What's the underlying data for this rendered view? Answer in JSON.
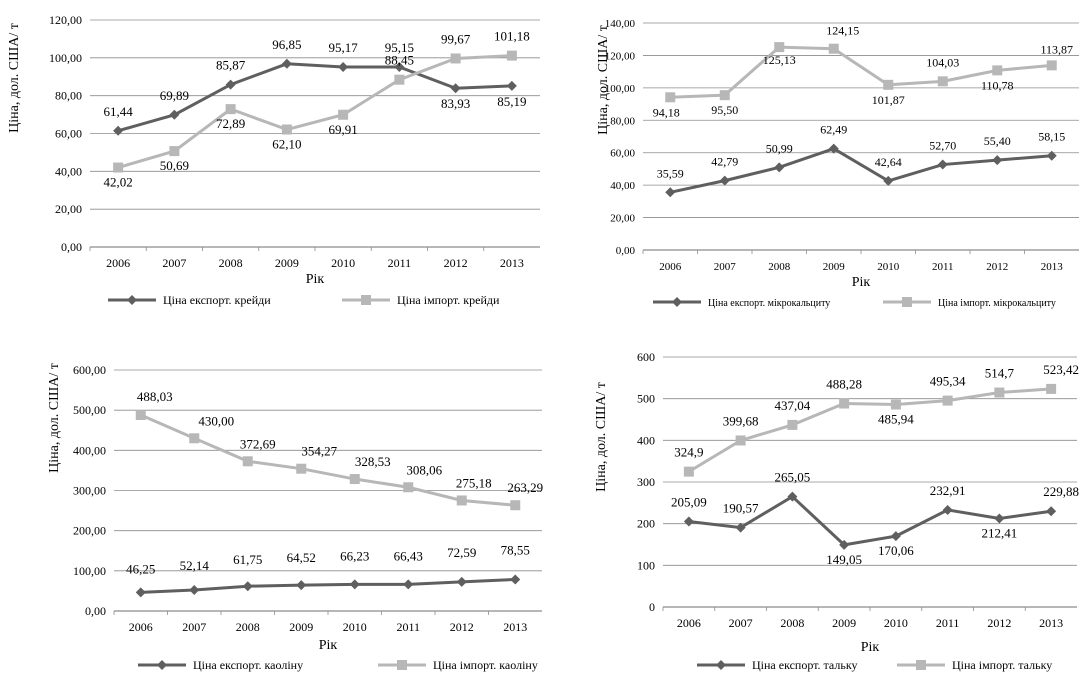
{
  "colors": {
    "export": "#5f5f5f",
    "import": "#b7b7b7",
    "grid": "#8c8c8c"
  },
  "chart_data": [
    {
      "type": "line",
      "ylabel": "Ціна, дол. США/ т",
      "xlabel": "Рік",
      "categories": [
        "2006",
        "2007",
        "2008",
        "2009",
        "2010",
        "2011",
        "2012",
        "2013"
      ],
      "ylim": [
        0,
        120
      ],
      "ytick_labels": [
        "0,00",
        "20,00",
        "40,00",
        "60,00",
        "80,00",
        "100,00",
        "120,00"
      ],
      "series": [
        {
          "name": "Ціна експорт. крейди",
          "values": [
            61.44,
            69.89,
            85.87,
            96.85,
            95.17,
            95.15,
            83.93,
            85.19
          ],
          "labels": [
            "61,44",
            "69,89",
            "85,87",
            "96,85",
            "95,17",
            "95,15",
            "83,93",
            "85,19"
          ]
        },
        {
          "name": "Ціна імпорт. крейди",
          "values": [
            42.02,
            50.69,
            72.89,
            62.1,
            69.91,
            88.45,
            99.67,
            101.18
          ],
          "labels": [
            "42,02",
            "50,69",
            "72,89",
            "62,10",
            "69,91",
            "88,45",
            "99,67",
            "101,18"
          ]
        }
      ]
    },
    {
      "type": "line",
      "ylabel": "Ціна, дол. США/ т",
      "xlabel": "Рік",
      "categories": [
        "2006",
        "2007",
        "2008",
        "2009",
        "2010",
        "2011",
        "2012",
        "2013"
      ],
      "ylim": [
        0,
        140
      ],
      "ytick_labels": [
        "0,00",
        "20,00",
        "40,00",
        "60,00",
        "80,00",
        "100,00",
        "120,00",
        "140,00"
      ],
      "series": [
        {
          "name": "Ціна експорт. мікрокальциту",
          "values": [
            35.59,
            42.79,
            50.99,
            62.49,
            42.64,
            52.7,
            55.4,
            58.15
          ],
          "labels": [
            "35,59",
            "42,79",
            "50,99",
            "62,49",
            "42,64",
            "52,70",
            "55,40",
            "58,15"
          ]
        },
        {
          "name": "Ціна імпорт. мікрокальциту",
          "values": [
            94.18,
            95.5,
            125.13,
            124.15,
            101.87,
            104.03,
            110.78,
            113.87
          ],
          "labels": [
            "94,18",
            "95,50",
            "125,13",
            "124,15",
            "101,87",
            "104,03",
            "110,78",
            "113,87"
          ]
        }
      ]
    },
    {
      "type": "line",
      "ylabel": "Ціна, дол. США/ т",
      "xlabel": "Рік",
      "categories": [
        "2006",
        "2007",
        "2008",
        "2009",
        "2010",
        "2011",
        "2012",
        "2013"
      ],
      "ylim": [
        0,
        600
      ],
      "ytick_labels": [
        "0,00",
        "100,00",
        "200,00",
        "300,00",
        "400,00",
        "500,00",
        "600,00"
      ],
      "series": [
        {
          "name": "Ціна експорт. каоліну",
          "values": [
            46.25,
            52.14,
            61.75,
            64.52,
            66.23,
            66.43,
            72.59,
            78.55
          ],
          "labels": [
            "46,25",
            "52,14",
            "61,75",
            "64,52",
            "66,23",
            "66,43",
            "72,59",
            "78,55"
          ]
        },
        {
          "name": "Ціна імпорт. каоліну",
          "values": [
            488.03,
            430.0,
            372.69,
            354.27,
            328.53,
            308.06,
            275.18,
            263.29
          ],
          "labels": [
            "488,03",
            "430,00",
            "372,69",
            "354,27",
            "328,53",
            "308,06",
            "275,18",
            "263,29"
          ]
        }
      ]
    },
    {
      "type": "line",
      "ylabel": "Ціна, дол. США/ т",
      "xlabel": "Рік",
      "categories": [
        "2006",
        "2007",
        "2008",
        "2009",
        "2010",
        "2011",
        "2012",
        "2013"
      ],
      "ylim": [
        0,
        600
      ],
      "ytick_labels": [
        "0",
        "100",
        "200",
        "300",
        "400",
        "500",
        "600"
      ],
      "series": [
        {
          "name": "Ціна експорт. тальку",
          "values": [
            205.09,
            190.57,
            265.05,
            149.05,
            170.06,
            232.91,
            212.41,
            229.88
          ],
          "labels": [
            "205,09",
            "190,57",
            "265,05",
            "149,05",
            "170,06",
            "232,91",
            "212,41",
            "229,88"
          ]
        },
        {
          "name": "Ціна імпорт. тальку",
          "values": [
            324.9,
            399.68,
            437.04,
            488.28,
            485.94,
            495.34,
            514.7,
            523.42
          ],
          "labels": [
            "324,9",
            "399,68",
            "437,04",
            "488,28",
            "485,94",
            "495,34",
            "514,7",
            "523,42"
          ]
        }
      ]
    }
  ]
}
